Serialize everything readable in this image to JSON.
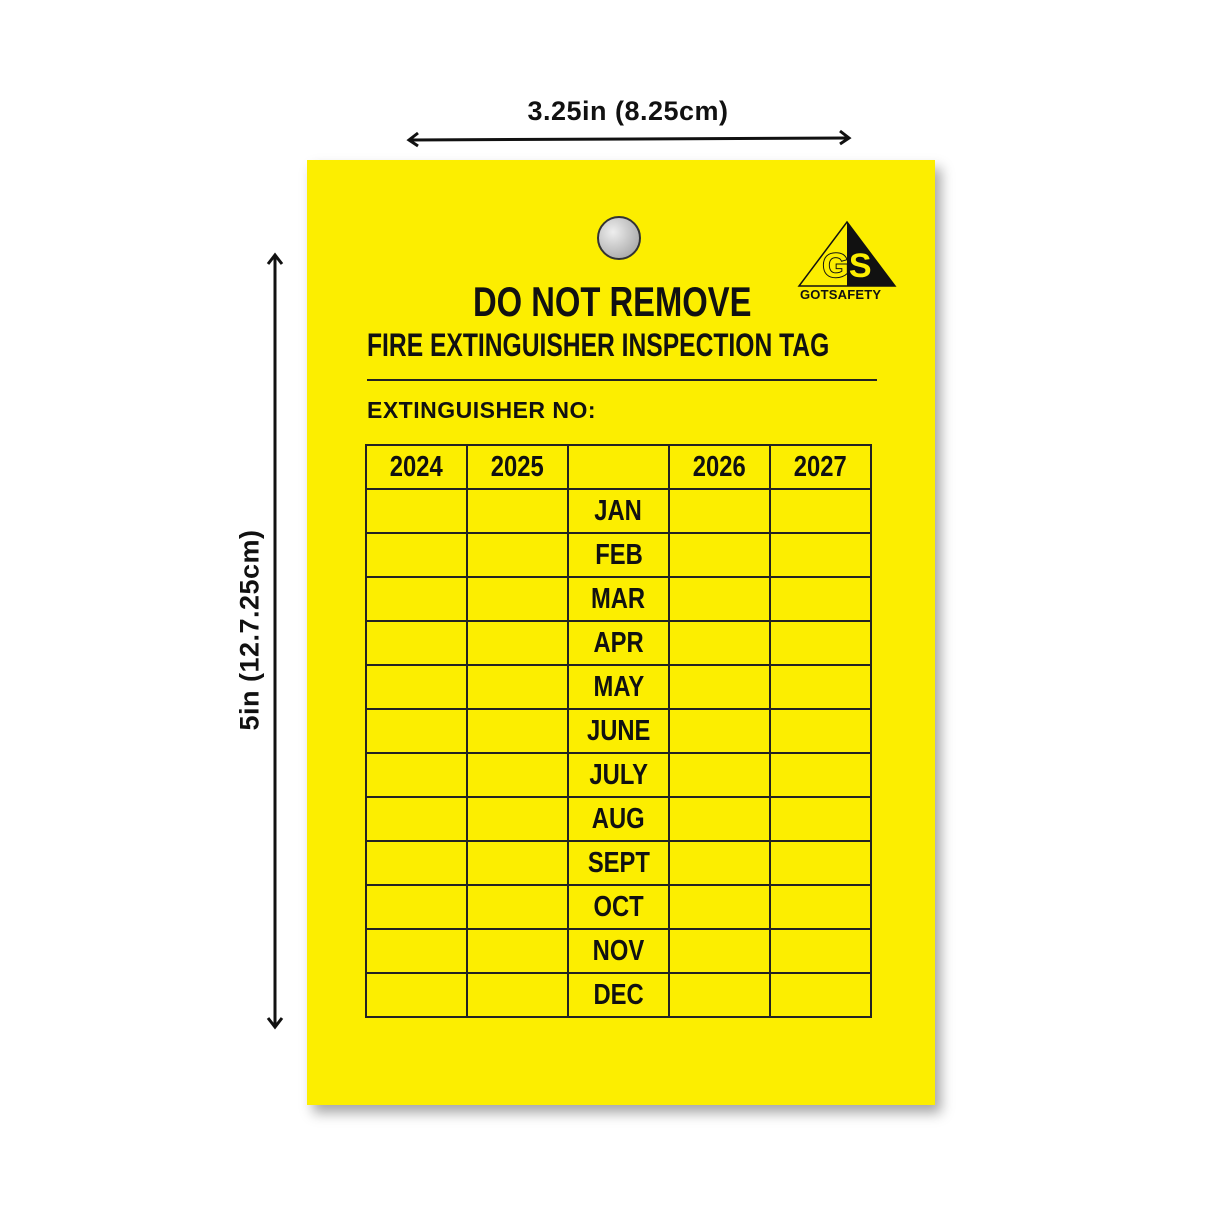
{
  "dimensions": {
    "width_label": "3.25in (8.25cm)",
    "height_label": "5in (12.7.25cm)"
  },
  "tag": {
    "color": "#fcee00",
    "logo": {
      "initials": "GS",
      "brand": "GOTSAFETY"
    },
    "title": "DO NOT REMOVE",
    "subtitle": "FIRE EXTINGUISHER INSPECTION TAG",
    "extinguisher_label": "EXTINGUISHER NO:",
    "table": {
      "headers": [
        "2024",
        "2025",
        "",
        "2026",
        "2027"
      ],
      "months": [
        "JAN",
        "FEB",
        "MAR",
        "APR",
        "MAY",
        "JUNE",
        "JULY",
        "AUG",
        "SEPT",
        "OCT",
        "NOV",
        "DEC"
      ]
    }
  }
}
